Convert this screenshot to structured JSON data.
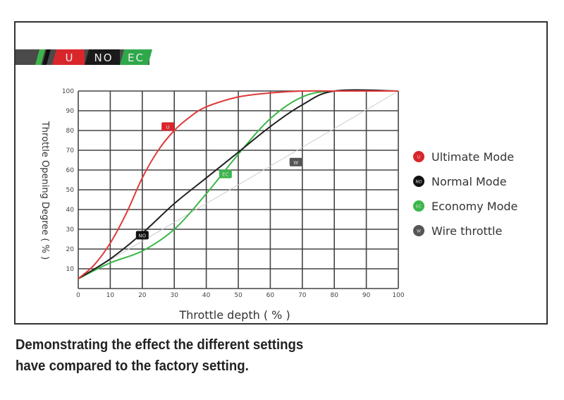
{
  "header_bar": {
    "labels": [
      "U",
      "NO",
      "EC"
    ],
    "colors": [
      "#d9262b",
      "#1a1a1a",
      "#2ea84a"
    ]
  },
  "chart_data": {
    "type": "line",
    "xlabel": "Throttle depth ( % )",
    "ylabel": "Throttle Opening Degree ( % )",
    "xlim": [
      0,
      100
    ],
    "ylim": [
      0,
      100
    ],
    "x_ticks": [
      "0",
      "10",
      "20",
      "30",
      "40",
      "50",
      "60",
      "70",
      "80",
      "90",
      "100"
    ],
    "y_ticks": [
      "10",
      "20",
      "30",
      "40",
      "50",
      "60",
      "70",
      "80",
      "90",
      "100"
    ],
    "grid": true,
    "legend_position": "right",
    "series": [
      {
        "name": "Ultimate Mode",
        "badge": "U",
        "color": "#e03a3a",
        "x": [
          0,
          5,
          10,
          15,
          20,
          25,
          30,
          35,
          40,
          50,
          60,
          70,
          80,
          100
        ],
        "y": [
          5,
          12,
          23,
          38,
          56,
          70,
          80,
          87,
          92,
          97,
          99,
          100,
          100,
          100
        ],
        "badge_at": [
          28,
          82
        ]
      },
      {
        "name": "Normal Mode",
        "badge": "NO",
        "color": "#222222",
        "x": [
          0,
          10,
          20,
          30,
          40,
          50,
          60,
          70,
          80,
          100
        ],
        "y": [
          5,
          15,
          28,
          43,
          56,
          69,
          82,
          93,
          100,
          100
        ],
        "badge_at": [
          20,
          27
        ]
      },
      {
        "name": "Economy Mode",
        "badge": "EC",
        "color": "#3cb64a",
        "x": [
          0,
          10,
          20,
          30,
          40,
          50,
          60,
          70,
          80,
          100
        ],
        "y": [
          5,
          13,
          19,
          30,
          48,
          68,
          86,
          97,
          100,
          100
        ],
        "badge_at": [
          46,
          58
        ]
      },
      {
        "name": "Wire throttle",
        "badge": "W",
        "color": "#cccccc",
        "x": [
          0,
          100
        ],
        "y": [
          5,
          100
        ],
        "badge_at": [
          68,
          64
        ]
      }
    ]
  },
  "caption": {
    "line1": "Demonstrating the effect the different settings",
    "line2": "have compared to the factory setting."
  }
}
